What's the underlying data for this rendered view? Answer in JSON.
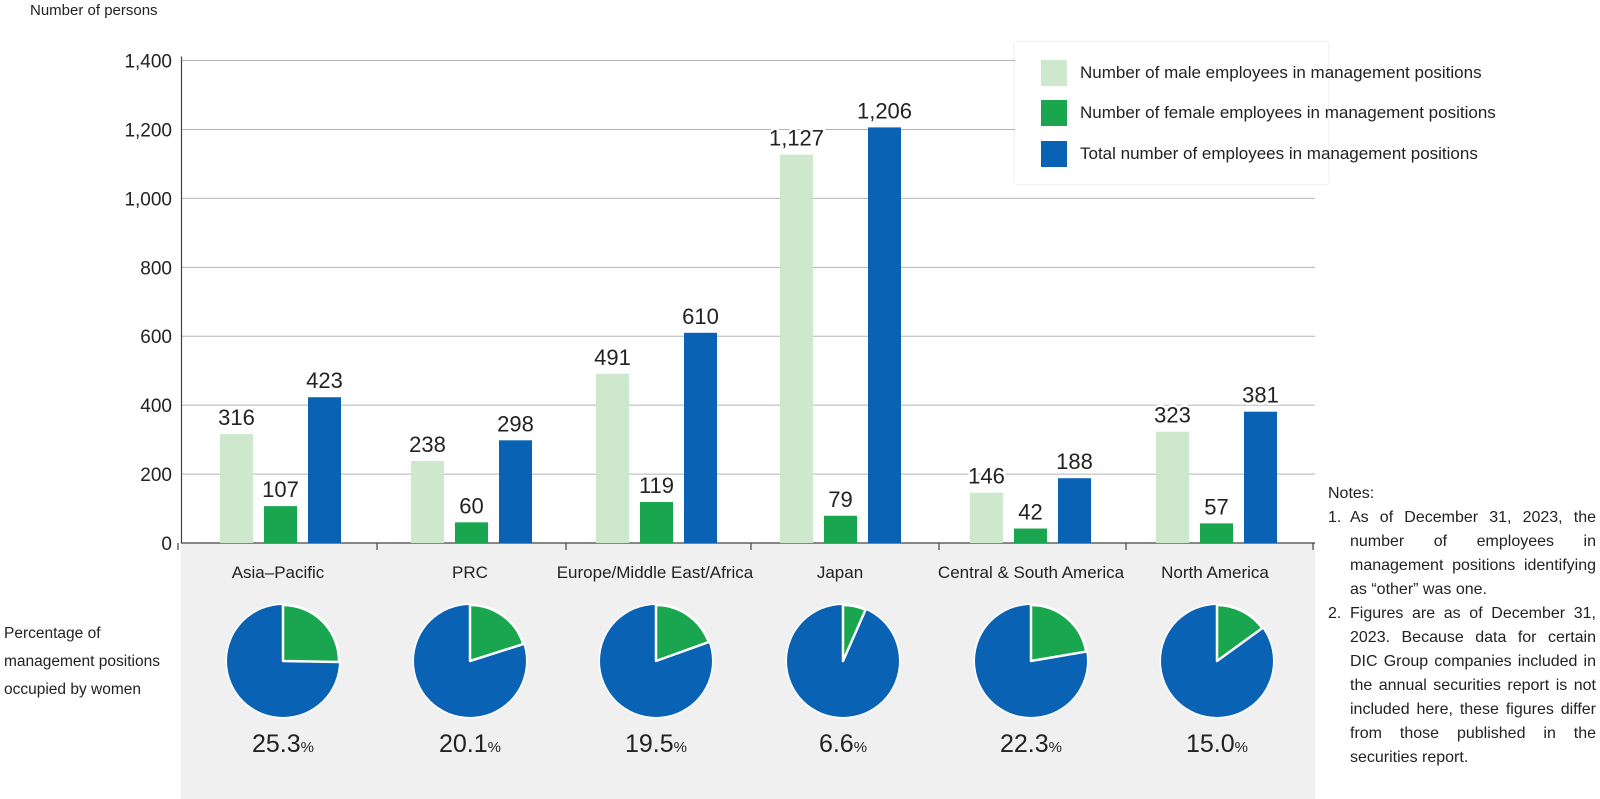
{
  "y_axis_title": "Number of persons",
  "pie_row_label": [
    "Percentage of",
    "management positions",
    "occupied by women"
  ],
  "percent_sign": "%",
  "legend": [
    {
      "label": "Number of male employees in management positions",
      "color": "#cde8cd"
    },
    {
      "label": "Number of female employees in management positions",
      "color": "#1aa64e"
    },
    {
      "label": "Total number of employees in management positions",
      "color": "#0a62b5"
    }
  ],
  "notes": {
    "title": "Notes:",
    "items": [
      {
        "num": "1.",
        "text": "As of December 31, 2023, the number of employees in management positions identifying as “other” was one."
      },
      {
        "num": "2.",
        "text": "Figures are as of December 31, 2023. Because data for certain DIC Group companies included in the annual securities report is not included here, these figures differ from those published in the securities report."
      }
    ]
  },
  "colors": {
    "male": "#cde8cd",
    "female": "#1aa64e",
    "total": "#0a62b5",
    "grid": "#b5b5b5",
    "panel": "#f0f0f0"
  },
  "chart_data": {
    "type": "bar",
    "ylabel": "Number of persons",
    "ylim": [
      0,
      1400
    ],
    "yticks": [
      0,
      200,
      400,
      600,
      800,
      1000,
      1200,
      1400
    ],
    "ytick_labels": [
      "0",
      "200",
      "400",
      "600",
      "800",
      "1,000",
      "1,200",
      "1,400"
    ],
    "grid": true,
    "legend_position": "top-right",
    "categories": [
      "Asia–Pacific",
      "PRC",
      "Europe/Middle East/Africa",
      "Japan",
      "Central & South America",
      "North America"
    ],
    "series": [
      {
        "name": "Number of male employees in management positions",
        "values": [
          316,
          238,
          491,
          1127,
          146,
          323
        ],
        "labels": [
          "316",
          "238",
          "491",
          "1,127",
          "146",
          "323"
        ]
      },
      {
        "name": "Number of female employees in management positions",
        "values": [
          107,
          60,
          119,
          79,
          42,
          57
        ],
        "labels": [
          "107",
          "60",
          "119",
          "79",
          "42",
          "57"
        ]
      },
      {
        "name": "Total number of employees in management positions",
        "values": [
          423,
          298,
          610,
          1206,
          188,
          381
        ],
        "labels": [
          "423",
          "298",
          "610",
          "1,206",
          "188",
          "381"
        ]
      }
    ],
    "pies": [
      {
        "category": "Asia–Pacific",
        "value": 25.3,
        "label": "25.3"
      },
      {
        "category": "PRC",
        "value": 20.1,
        "label": "20.1"
      },
      {
        "category": "Europe/Middle East/Africa",
        "value": 19.5,
        "label": "19.5"
      },
      {
        "category": "Japan",
        "value": 6.6,
        "label": "6.6"
      },
      {
        "category": "Central & South America",
        "value": 22.3,
        "label": "22.3"
      },
      {
        "category": "North America",
        "value": 15.0,
        "label": "15.0"
      }
    ]
  }
}
